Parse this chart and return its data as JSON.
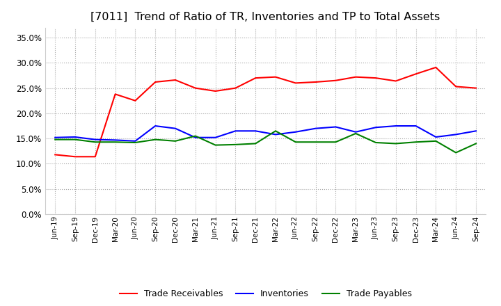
{
  "title": "[7011]  Trend of Ratio of TR, Inventories and TP to Total Assets",
  "x_labels": [
    "Jun-19",
    "Sep-19",
    "Dec-19",
    "Mar-20",
    "Jun-20",
    "Sep-20",
    "Dec-20",
    "Mar-21",
    "Jun-21",
    "Sep-21",
    "Dec-21",
    "Mar-22",
    "Jun-22",
    "Sep-22",
    "Dec-22",
    "Mar-23",
    "Jun-23",
    "Sep-23",
    "Dec-23",
    "Mar-24",
    "Jun-24",
    "Sep-24"
  ],
  "trade_receivables": [
    0.118,
    0.114,
    0.114,
    0.238,
    0.225,
    0.262,
    0.266,
    0.25,
    0.244,
    0.25,
    0.27,
    0.272,
    0.26,
    0.262,
    0.265,
    0.272,
    0.27,
    0.264,
    0.278,
    0.291,
    0.253,
    0.25
  ],
  "inventories": [
    0.152,
    0.153,
    0.148,
    0.147,
    0.145,
    0.175,
    0.17,
    0.152,
    0.152,
    0.165,
    0.165,
    0.158,
    0.163,
    0.17,
    0.173,
    0.163,
    0.172,
    0.175,
    0.175,
    0.153,
    0.158,
    0.165
  ],
  "trade_payables": [
    0.148,
    0.148,
    0.143,
    0.143,
    0.142,
    0.148,
    0.145,
    0.155,
    0.137,
    0.138,
    0.14,
    0.165,
    0.143,
    0.143,
    0.143,
    0.16,
    0.142,
    0.14,
    0.143,
    0.145,
    0.122,
    0.14
  ],
  "tr_color": "#ff0000",
  "inv_color": "#0000ff",
  "tp_color": "#008000",
  "ylim": [
    0.0,
    0.37
  ],
  "yticks": [
    0.0,
    0.05,
    0.1,
    0.15,
    0.2,
    0.25,
    0.3,
    0.35
  ],
  "background_color": "#ffffff",
  "grid_color": "#aaaaaa",
  "title_fontsize": 11.5,
  "tick_fontsize": 7.5,
  "ytick_fontsize": 8.5,
  "legend_items": [
    "Trade Receivables",
    "Inventories",
    "Trade Payables"
  ],
  "legend_fontsize": 9
}
